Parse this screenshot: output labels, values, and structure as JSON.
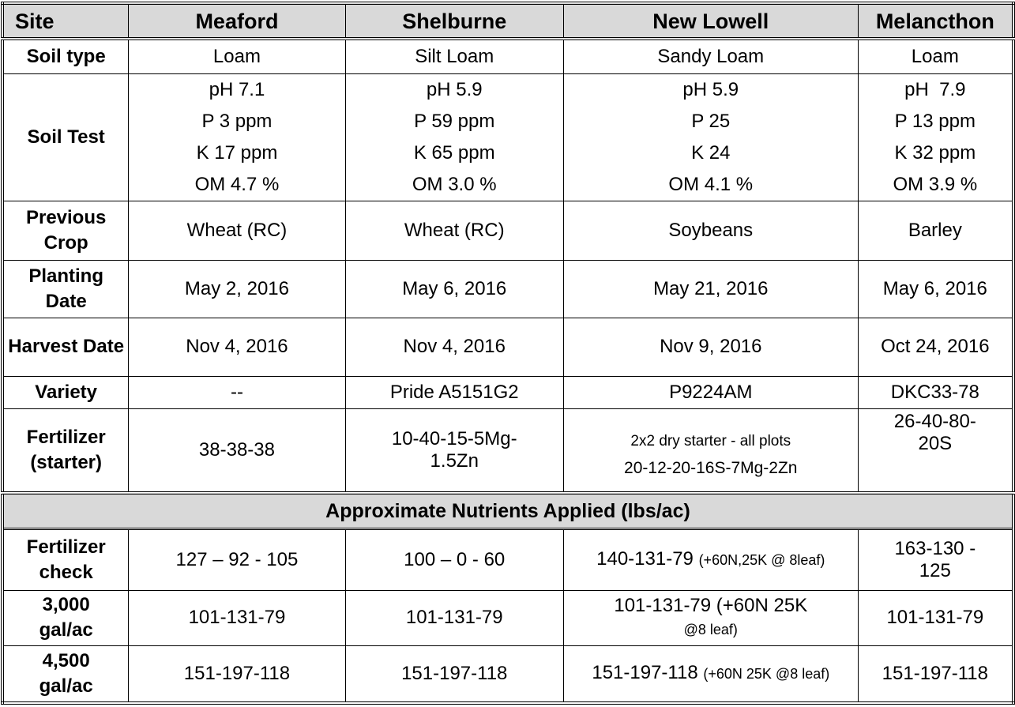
{
  "header": {
    "site": "Site",
    "sites": [
      "Meaford",
      "Shelburne",
      "New Lowell",
      "Melancthon"
    ]
  },
  "rows": {
    "soil_type": {
      "label": "Soil type",
      "values": [
        "Loam",
        "Silt Loam",
        "Sandy Loam",
        "Loam"
      ]
    },
    "soil_test": {
      "label": "Soil Test",
      "values": [
        [
          "pH 7.1",
          "P 3 ppm",
          "K 17 ppm",
          "OM 4.7 %"
        ],
        [
          "pH 5.9",
          "P 59 ppm",
          "K 65 ppm",
          "OM 3.0 %"
        ],
        [
          "pH 5.9",
          "P 25",
          "K 24",
          "OM 4.1 %"
        ],
        [
          "pH  7.9",
          "P 13 ppm",
          "K 32 ppm",
          "OM 3.9 %"
        ]
      ]
    },
    "previous_crop": {
      "label": "Previous Crop",
      "values": [
        "Wheat (RC)",
        "Wheat (RC)",
        "Soybeans",
        "Barley"
      ]
    },
    "planting_date": {
      "label": "Planting Date",
      "values": [
        "May 2, 2016",
        "May 6, 2016",
        "May 21, 2016",
        "May 6, 2016"
      ]
    },
    "harvest_date": {
      "label": "Harvest Date",
      "values": [
        "Nov 4, 2016",
        "Nov 4, 2016",
        "Nov 9, 2016",
        "Oct 24, 2016"
      ]
    },
    "variety": {
      "label": "Variety",
      "values": [
        "--",
        "Pride A5151G2",
        "P9224AM",
        "DKC33-78"
      ]
    },
    "fertilizer": {
      "label": "Fertilizer (starter)",
      "values": [
        "38-38-38",
        "10-40-15-5Mg-1.5Zn",
        [
          "2x2 dry starter - all plots",
          "20-12-20-16S-7Mg-2Zn"
        ],
        "26-40-80-20S"
      ]
    }
  },
  "section_title": "Approximate Nutrients Applied (lbs/ac)",
  "nutrients": {
    "fertilizer_check": {
      "label": "Fertilizer check",
      "values": [
        "127 – 92 - 105",
        "100 – 0 - 60",
        {
          "main": "140-131-79",
          "note": "(+60N,25K @ 8leaf)"
        },
        "163-130 - 125"
      ]
    },
    "gal_3000": {
      "label": "3,000 gal/ac",
      "values": [
        "101-131-79",
        "101-131-79",
        {
          "main": "101-131-79 (+60N 25K",
          "note": "@8 leaf)"
        },
        "101-131-79"
      ]
    },
    "gal_4500": {
      "label": "4,500 gal/ac",
      "values": [
        "151-197-118",
        "151-197-118",
        {
          "main": "151-197-118",
          "note": "(+60N 25K @8 leaf)"
        },
        "151-197-118"
      ]
    }
  }
}
